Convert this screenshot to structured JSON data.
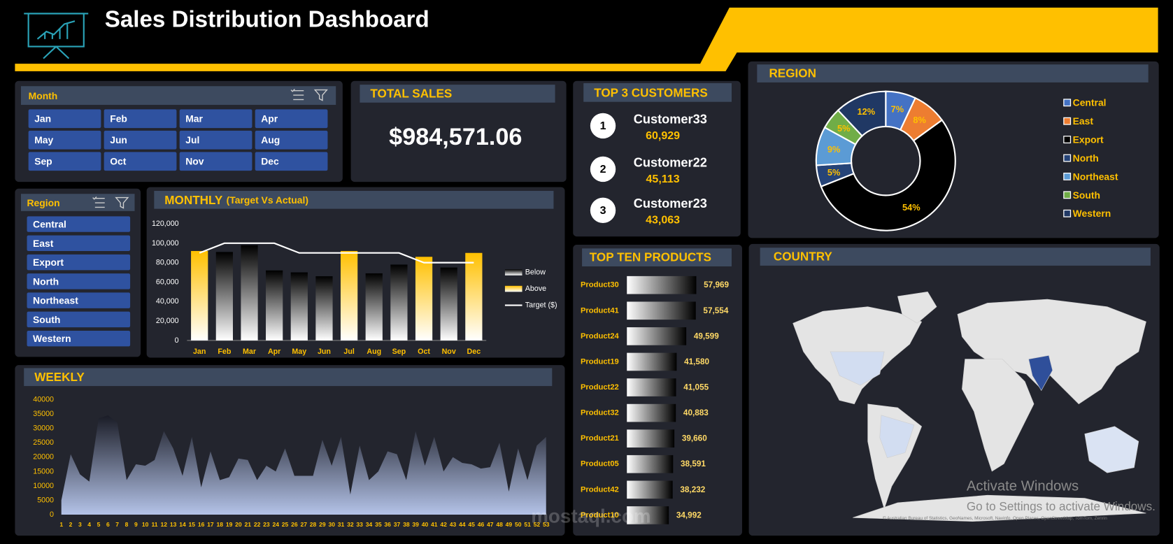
{
  "header": {
    "title": "Sales Distribution Dashboard"
  },
  "month_slicer": {
    "title": "Month",
    "items": [
      "Jan",
      "Feb",
      "Mar",
      "Apr",
      "May",
      "Jun",
      "Jul",
      "Aug",
      "Sep",
      "Oct",
      "Nov",
      "Dec"
    ]
  },
  "region_slicer": {
    "title": "Region",
    "items": [
      "Central",
      "East",
      "Export",
      "North",
      "Northeast",
      "South",
      "Western"
    ]
  },
  "total_sales": {
    "title": "TOTAL SALES",
    "value": "$984,571.06"
  },
  "top_customers": {
    "title": "TOP 3 CUSTOMERS",
    "items": [
      {
        "rank": 1,
        "name": "Customer33",
        "value": "60,929"
      },
      {
        "rank": 2,
        "name": "Customer22",
        "value": "45,113"
      },
      {
        "rank": 3,
        "name": "Customer23",
        "value": "43,063"
      }
    ]
  },
  "country": {
    "title": "COUNTRY",
    "attribution": "© Australian Bureau of Statistics, GeoNames, Microsoft, Navinfo, Open Places, OpenStreetMap, TomTom, Zenrin"
  },
  "overlay": {
    "line1": "Activate Windows",
    "line2": "Go to Settings to activate Windows.",
    "watermark": "mostaql.com"
  },
  "chart_data": [
    {
      "type": "bar",
      "title": "MONTHLY",
      "subtitle": "(Target Vs Actual)",
      "categories": [
        "Jan",
        "Feb",
        "Mar",
        "Apr",
        "May",
        "Jun",
        "Jul",
        "Aug",
        "Sep",
        "Oct",
        "Nov",
        "Dec"
      ],
      "series": [
        {
          "name": "Below",
          "color": "#000000",
          "values": [
            null,
            91000,
            98000,
            72000,
            70000,
            66000,
            null,
            69000,
            78000,
            null,
            75000,
            null
          ]
        },
        {
          "name": "Above",
          "color": "#ffc000",
          "values": [
            92000,
            null,
            null,
            null,
            null,
            null,
            92000,
            null,
            null,
            86000,
            null,
            90000
          ]
        },
        {
          "name": "Target ($)",
          "type": "line",
          "color": "#ffffff",
          "values": [
            90000,
            100000,
            100000,
            100000,
            90000,
            90000,
            90000,
            90000,
            90000,
            80000,
            80000,
            80000
          ]
        }
      ],
      "ylim": [
        0,
        120000
      ],
      "yticks": [
        0,
        {
          "value": 20000,
          "label": "20,000"
        },
        {
          "value": 40000,
          "label": "40,000"
        },
        {
          "value": 60000,
          "label": "60,000"
        },
        {
          "value": 80000,
          "label": "80,000"
        },
        {
          "value": 100000,
          "label": "100,000"
        },
        {
          "value": 120000,
          "label": "120,000"
        }
      ],
      "legend": "right"
    },
    {
      "type": "donut",
      "title": "REGION",
      "categories": [
        "Central",
        "East",
        "Export",
        "North",
        "Northeast",
        "South",
        "Western"
      ],
      "values": [
        7,
        8,
        54,
        5,
        9,
        5,
        12
      ],
      "value_labels": [
        "7%",
        "8%",
        "54%",
        "5%",
        "9%",
        "5%",
        "12%"
      ],
      "colors": [
        "#4472c4",
        "#ed7d31",
        "#000000",
        "#264478",
        "#5b9bd5",
        "#70ad47",
        "#203864"
      ],
      "legend": "right"
    },
    {
      "type": "barh",
      "title": "TOP TEN PRODUCTS",
      "categories": [
        "Product30",
        "Product41",
        "Product24",
        "Product19",
        "Product22",
        "Product32",
        "Product21",
        "Product05",
        "Product42",
        "Product10"
      ],
      "values": [
        57969,
        57554,
        49599,
        41580,
        41055,
        40883,
        39660,
        38591,
        38232,
        34992
      ],
      "value_labels": [
        "57,969",
        "57,554",
        "49,599",
        "41,580",
        "41,055",
        "40,883",
        "39,660",
        "38,591",
        "38,232",
        "34,992"
      ],
      "color": "#000000"
    },
    {
      "type": "area",
      "title": "WEEKLY",
      "x": [
        1,
        2,
        3,
        4,
        5,
        6,
        7,
        8,
        9,
        10,
        11,
        12,
        13,
        14,
        15,
        16,
        17,
        18,
        19,
        20,
        21,
        22,
        23,
        24,
        25,
        26,
        27,
        28,
        29,
        30,
        31,
        32,
        33,
        34,
        35,
        36,
        37,
        38,
        39,
        40,
        41,
        42,
        43,
        44,
        45,
        46,
        47,
        48,
        49,
        50,
        51,
        52,
        53
      ],
      "values": [
        5000,
        21000,
        14000,
        11500,
        33500,
        34500,
        32000,
        12000,
        17500,
        17000,
        19000,
        29000,
        23000,
        13500,
        27000,
        9500,
        22000,
        12000,
        13000,
        19500,
        19000,
        12000,
        17000,
        15000,
        23000,
        13500,
        13500,
        13500,
        26000,
        17000,
        27000,
        7000,
        24000,
        12000,
        15000,
        22000,
        21000,
        12000,
        29000,
        17000,
        27000,
        15000,
        20000,
        18000,
        17500,
        16000,
        16500,
        25000,
        8000,
        23000,
        12000,
        24000,
        27000
      ],
      "xlim": [
        1,
        53
      ],
      "ylim": [
        0,
        40000
      ],
      "yticks": [
        0,
        5000,
        10000,
        15000,
        20000,
        25000,
        30000,
        35000,
        40000
      ],
      "color": "#b4c3e8"
    }
  ]
}
